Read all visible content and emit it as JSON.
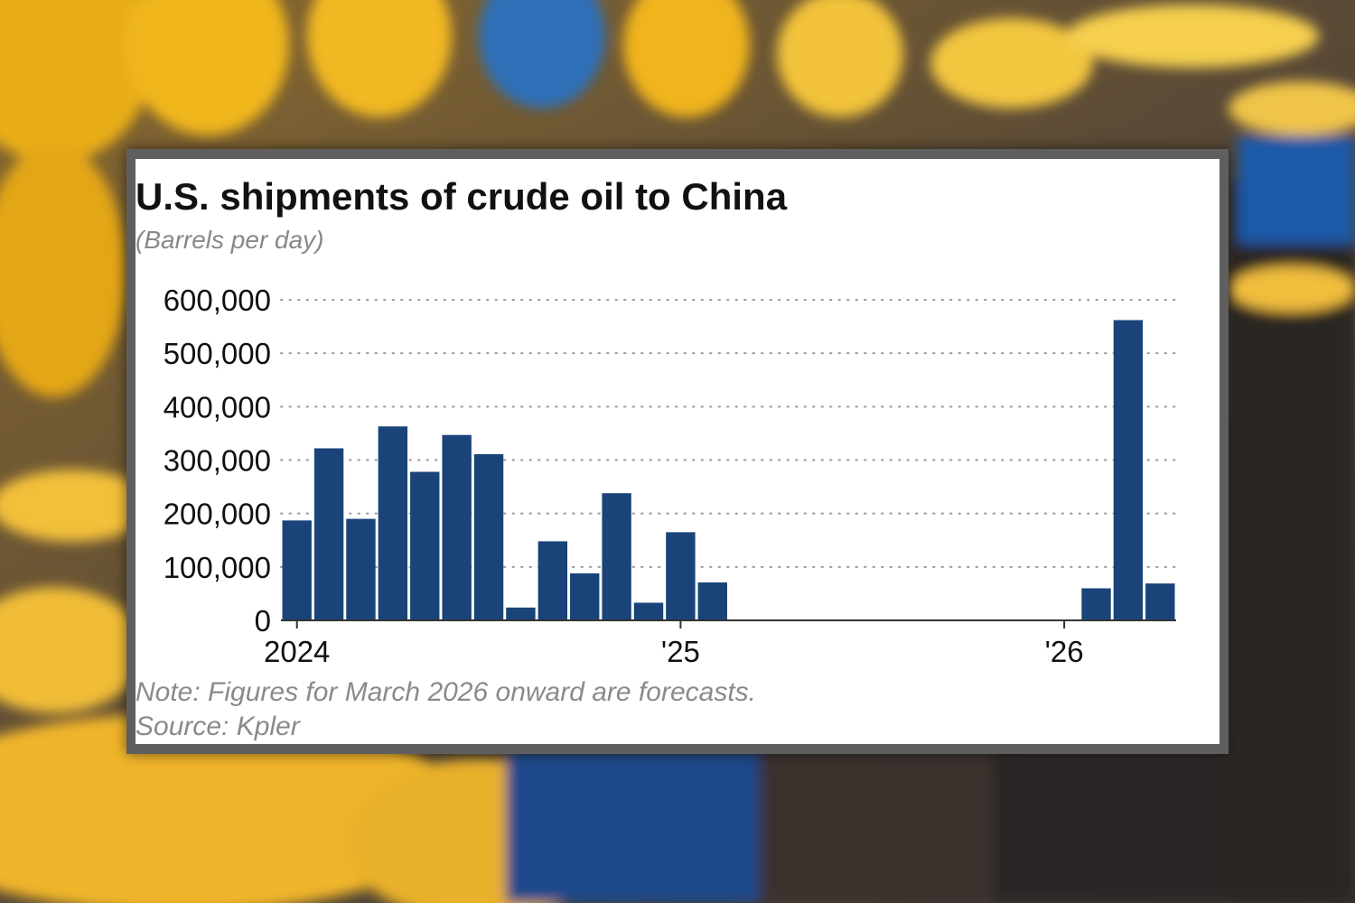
{
  "chart_data": {
    "type": "bar",
    "title": "U.S. shipments of crude oil to China",
    "subtitle": "(Barrels per day)",
    "note": "Note: Figures for March 2026 onward are forecasts.",
    "source": "Source: Kpler",
    "xlabel": "",
    "ylabel": "Barrels per day",
    "ylim": [
      0,
      600000
    ],
    "grid": true,
    "y_ticks": [
      0,
      100000,
      200000,
      300000,
      400000,
      500000,
      600000
    ],
    "y_tick_labels": [
      "0",
      "100,000",
      "200,000",
      "300,000",
      "400,000",
      "500,000",
      "600,000"
    ],
    "x_ticks": [
      {
        "label": "2024",
        "at_index": 0
      },
      {
        "label": "'25",
        "at_index": 12
      },
      {
        "label": "'26",
        "at_index": 24
      }
    ],
    "categories": [
      "2024-01",
      "2024-02",
      "2024-03",
      "2024-04",
      "2024-05",
      "2024-06",
      "2024-07",
      "2024-08",
      "2024-09",
      "2024-10",
      "2024-11",
      "2024-12",
      "2025-01",
      "2025-02",
      "2025-03",
      "2025-04",
      "2025-05",
      "2025-06",
      "2025-07",
      "2025-08",
      "2025-09",
      "2025-10",
      "2025-11",
      "2025-12",
      "2026-01",
      "2026-02",
      "2026-03",
      "2026-04"
    ],
    "values": [
      187000,
      322000,
      190000,
      363000,
      278000,
      347000,
      311000,
      24000,
      148000,
      88000,
      238000,
      33000,
      165000,
      71000,
      0,
      0,
      0,
      0,
      0,
      0,
      0,
      0,
      0,
      0,
      0,
      60000,
      562000,
      69000
    ],
    "bar_color": "#1a4479"
  }
}
